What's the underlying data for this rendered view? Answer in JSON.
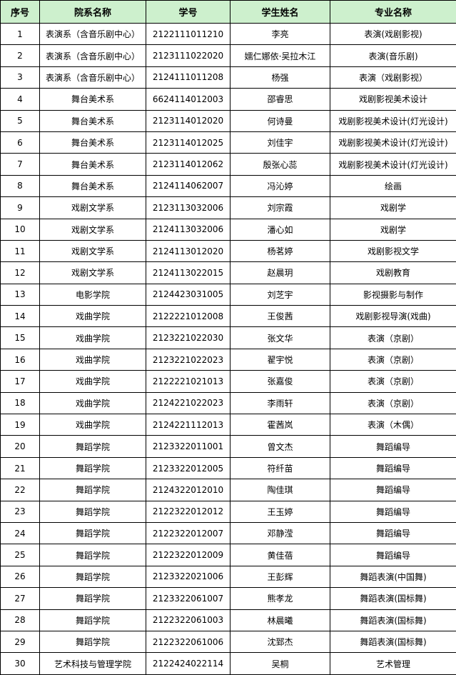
{
  "table": {
    "header": [
      "序号",
      "院系名称",
      "学号",
      "学生姓名",
      "专业名称"
    ],
    "rows": [
      [
        "1",
        "表演系（含音乐剧中心）",
        "2122111011210",
        "李亮",
        "表演(戏剧影视)"
      ],
      [
        "2",
        "表演系（含音乐剧中心）",
        "2123111022020",
        "嬬仁娜依·吴拉木江",
        "表演(音乐剧)"
      ],
      [
        "3",
        "表演系（含音乐剧中心）",
        "2124111011208",
        "杨强",
        "表演（戏剧影视）"
      ],
      [
        "4",
        "舞台美术系",
        "6624114012003",
        "邵睿思",
        "戏剧影视美术设计"
      ],
      [
        "5",
        "舞台美术系",
        "2123114012020",
        "何诗曼",
        "戏剧影视美术设计(灯光设计)"
      ],
      [
        "6",
        "舞台美术系",
        "2123114012025",
        "刘佳宇",
        "戏剧影视美术设计(灯光设计)"
      ],
      [
        "7",
        "舞台美术系",
        "2123114012062",
        "殷张心蕊",
        "戏剧影视美术设计(灯光设计)"
      ],
      [
        "8",
        "舞台美术系",
        "2124114062007",
        "冯沁婷",
        "绘画"
      ],
      [
        "9",
        "戏剧文学系",
        "2123113032006",
        "刘宗霞",
        "戏剧学"
      ],
      [
        "10",
        "戏剧文学系",
        "2124113032006",
        "潘心如",
        "戏剧学"
      ],
      [
        "11",
        "戏剧文学系",
        "2124113012020",
        "杨茗婷",
        "戏剧影视文学"
      ],
      [
        "12",
        "戏剧文学系",
        "2124113022015",
        "赵晨玥",
        "戏剧教育"
      ],
      [
        "13",
        "电影学院",
        "2124423031005",
        "刘芝宇",
        "影视摄影与制作"
      ],
      [
        "14",
        "戏曲学院",
        "2122221012008",
        "王俊茜",
        "戏剧影视导演(戏曲)"
      ],
      [
        "15",
        "戏曲学院",
        "2123221022030",
        "张文华",
        "表演（京剧）"
      ],
      [
        "16",
        "戏曲学院",
        "2123221022023",
        "翟宇悦",
        "表演（京剧）"
      ],
      [
        "17",
        "戏曲学院",
        "2122221021013",
        "张嘉俊",
        "表演（京剧）"
      ],
      [
        "18",
        "戏曲学院",
        "2124221022023",
        "李雨轩",
        "表演（京剧）"
      ],
      [
        "19",
        "戏曲学院",
        "2124221112013",
        "霍茜岚",
        "表演（木偶）"
      ],
      [
        "20",
        "舞蹈学院",
        "2123322011001",
        "曾文杰",
        "舞蹈编导"
      ],
      [
        "21",
        "舞蹈学院",
        "2123322012005",
        "符纤苗",
        "舞蹈编导"
      ],
      [
        "22",
        "舞蹈学院",
        "2124322012010",
        "陶佳琪",
        "舞蹈编导"
      ],
      [
        "23",
        "舞蹈学院",
        "2122322012012",
        "王玉婷",
        "舞蹈编导"
      ],
      [
        "24",
        "舞蹈学院",
        "2122322012007",
        "邓静滢",
        "舞蹈编导"
      ],
      [
        "25",
        "舞蹈学院",
        "2122322012009",
        "黄佳蓓",
        "舞蹈编导"
      ],
      [
        "26",
        "舞蹈学院",
        "2123322021006",
        "王彭辉",
        "舞蹈表演(中国舞)"
      ],
      [
        "27",
        "舞蹈学院",
        "2123322061007",
        "熊孝龙",
        "舞蹈表演(国标舞)"
      ],
      [
        "28",
        "舞蹈学院",
        "2122322061003",
        "林晨曦",
        "舞蹈表演(国标舞)"
      ],
      [
        "29",
        "舞蹈学院",
        "2122322061006",
        "沈郅杰",
        "舞蹈表演(国标舞)"
      ],
      [
        "30",
        "艺术科技与管理学院",
        "2122424022114",
        "吴桐",
        "艺术管理"
      ]
    ]
  }
}
